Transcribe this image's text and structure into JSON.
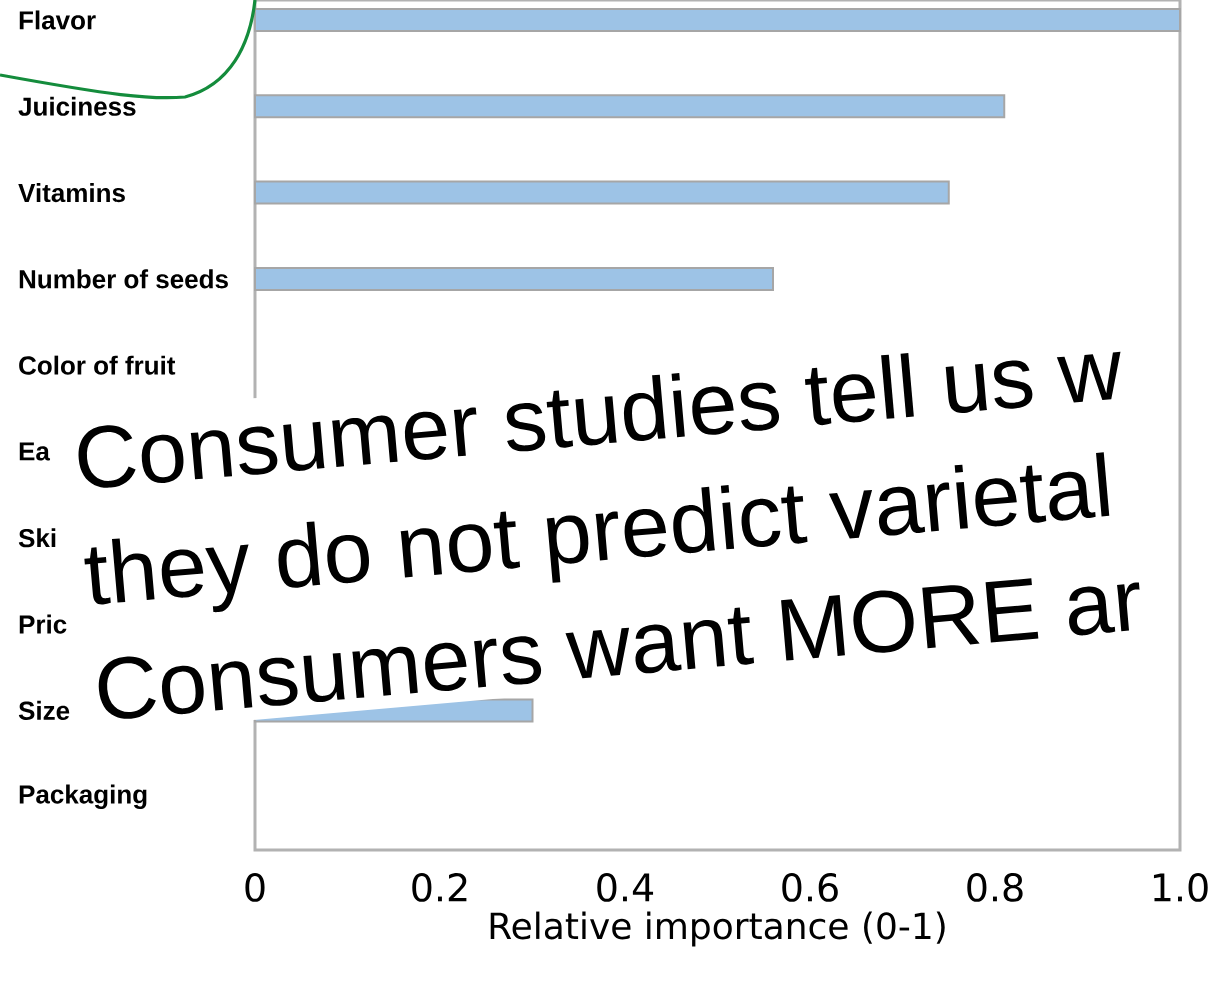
{
  "chart_data": {
    "type": "bar",
    "orientation": "horizontal",
    "categories": [
      "Flavor",
      "Juiciness",
      "Vitamins",
      "Number of seeds",
      "Color of fruit",
      "Ea",
      "Ski",
      "Pric",
      "Size",
      "Packaging"
    ],
    "values": [
      1.0,
      0.81,
      0.75,
      0.56,
      null,
      null,
      null,
      null,
      0.3,
      null
    ],
    "color": "#9dc3e6",
    "xlabel": "Relative importance (0-1)",
    "xlim": [
      0,
      1
    ],
    "xticks": [
      0,
      0.2,
      0.4,
      0.6,
      0.8,
      {
        "value": 1,
        "label": "1.0"
      }
    ],
    "annotations": [
      "Consumer studies tell us w",
      "they do not predict varietal",
      "Consumers want MORE ar"
    ]
  }
}
